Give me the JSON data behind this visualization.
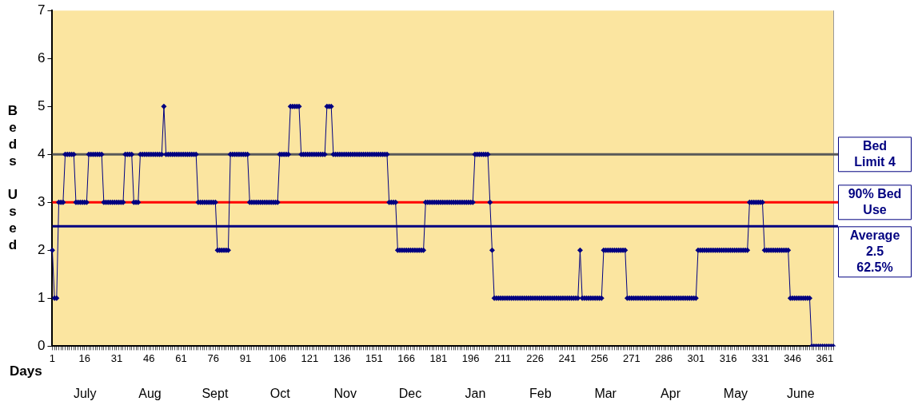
{
  "chart_data": {
    "type": "line",
    "xlabel": "Days",
    "ylabel": "Beds Used",
    "marker": "diamond",
    "grid": false,
    "ylim": [
      0,
      7
    ],
    "yticks": [
      0,
      1,
      2,
      3,
      4,
      5,
      6,
      7
    ],
    "categories": [
      "1",
      null,
      null,
      null,
      null,
      null,
      null,
      null,
      null,
      null,
      null,
      null,
      null,
      null,
      null,
      "16",
      null,
      null,
      null,
      null,
      null,
      null,
      null,
      null,
      null,
      null,
      null,
      null,
      null,
      null,
      "31",
      null,
      null,
      null,
      null,
      null,
      null,
      null,
      null,
      null,
      null,
      null,
      null,
      null,
      null,
      "46",
      null,
      null,
      null,
      null,
      null,
      null,
      null,
      null,
      null,
      null,
      null,
      null,
      null,
      null,
      "61",
      null,
      null,
      null,
      null,
      null,
      null,
      null,
      null,
      null,
      null,
      null,
      null,
      null,
      null,
      "76",
      null,
      null,
      null,
      null,
      null,
      null,
      null,
      null,
      null,
      null,
      null,
      null,
      null,
      null,
      "91",
      null,
      null,
      null,
      null,
      null,
      null,
      null,
      null,
      null,
      null,
      null,
      null,
      null,
      null,
      "106",
      null,
      null,
      null,
      null,
      null,
      null,
      null,
      null,
      null,
      null,
      null,
      null,
      null,
      null,
      "121",
      null,
      null,
      null,
      null,
      null,
      null,
      null,
      null,
      null,
      null,
      null,
      null,
      null,
      null,
      "136",
      null,
      null,
      null,
      null,
      null,
      null,
      null,
      null,
      null,
      null,
      null,
      null,
      null,
      null,
      "151",
      null,
      null,
      null,
      null,
      null,
      null,
      null,
      null,
      null,
      null,
      null,
      null,
      null,
      null,
      "166",
      null,
      null,
      null,
      null,
      null,
      null,
      null,
      null,
      null,
      null,
      null,
      null,
      null,
      null,
      "181",
      null,
      null,
      null,
      null,
      null,
      null,
      null,
      null,
      null,
      null,
      null,
      null,
      null,
      null,
      "196",
      null,
      null,
      null,
      null,
      null,
      null,
      null,
      null,
      null,
      null,
      null,
      null,
      null,
      null,
      "211",
      null,
      null,
      null,
      null,
      null,
      null,
      null,
      null,
      null,
      null,
      null,
      null,
      null,
      null,
      "226",
      null,
      null,
      null,
      null,
      null,
      null,
      null,
      null,
      null,
      null,
      null,
      null,
      null,
      null,
      "241",
      null,
      null,
      null,
      null,
      null,
      null,
      null,
      null,
      null,
      null,
      null,
      null,
      null,
      null,
      "256",
      null,
      null,
      null,
      null,
      null,
      null,
      null,
      null,
      null,
      null,
      null,
      null,
      null,
      null,
      "271",
      null,
      null,
      null,
      null,
      null,
      null,
      null,
      null,
      null,
      null,
      null,
      null,
      null,
      null,
      "286",
      null,
      null,
      null,
      null,
      null,
      null,
      null,
      null,
      null,
      null,
      null,
      null,
      null,
      null,
      "301",
      null,
      null,
      null,
      null,
      null,
      null,
      null,
      null,
      null,
      null,
      null,
      null,
      null,
      null,
      "316",
      null,
      null,
      null,
      null,
      null,
      null,
      null,
      null,
      null,
      null,
      null,
      null,
      null,
      null,
      "331",
      null,
      null,
      null,
      null,
      null,
      null,
      null,
      null,
      null,
      null,
      null,
      null,
      null,
      null,
      "346",
      null,
      null,
      null,
      null,
      null,
      null,
      null,
      null,
      null,
      null,
      null,
      null,
      null,
      null,
      "361",
      null,
      null,
      null,
      null
    ],
    "series": [
      {
        "color": "#000080",
        "values": [
          2,
          1,
          1,
          3,
          3,
          3,
          4,
          4,
          4,
          4,
          4,
          3,
          3,
          3,
          3,
          3,
          3,
          4,
          4,
          4,
          4,
          4,
          4,
          4,
          3,
          3,
          3,
          3,
          3,
          3,
          3,
          3,
          3,
          3,
          4,
          4,
          4,
          4,
          3,
          3,
          3,
          4,
          4,
          4,
          4,
          4,
          4,
          4,
          4,
          4,
          4,
          4,
          5,
          4,
          4,
          4,
          4,
          4,
          4,
          4,
          4,
          4,
          4,
          4,
          4,
          4,
          4,
          4,
          3,
          3,
          3,
          3,
          3,
          3,
          3,
          3,
          3,
          2,
          2,
          2,
          2,
          2,
          2,
          4,
          4,
          4,
          4,
          4,
          4,
          4,
          4,
          4,
          3,
          3,
          3,
          3,
          3,
          3,
          3,
          3,
          3,
          3,
          3,
          3,
          3,
          3,
          4,
          4,
          4,
          4,
          4,
          5,
          5,
          5,
          5,
          5,
          4,
          4,
          4,
          4,
          4,
          4,
          4,
          4,
          4,
          4,
          4,
          4,
          5,
          5,
          5,
          4,
          4,
          4,
          4,
          4,
          4,
          4,
          4,
          4,
          4,
          4,
          4,
          4,
          4,
          4,
          4,
          4,
          4,
          4,
          4,
          4,
          4,
          4,
          4,
          4,
          4,
          3,
          3,
          3,
          3,
          2,
          2,
          2,
          2,
          2,
          2,
          2,
          2,
          2,
          2,
          2,
          2,
          2,
          3,
          3,
          3,
          3,
          3,
          3,
          3,
          3,
          3,
          3,
          3,
          3,
          3,
          3,
          3,
          3,
          3,
          3,
          3,
          3,
          3,
          3,
          3,
          4,
          4,
          4,
          4,
          4,
          4,
          4,
          3,
          2,
          1,
          1,
          1,
          1,
          1,
          1,
          1,
          1,
          1,
          1,
          1,
          1,
          1,
          1,
          1,
          1,
          1,
          1,
          1,
          1,
          1,
          1,
          1,
          1,
          1,
          1,
          1,
          1,
          1,
          1,
          1,
          1,
          1,
          1,
          1,
          1,
          1,
          1,
          1,
          1,
          2,
          1,
          1,
          1,
          1,
          1,
          1,
          1,
          1,
          1,
          1,
          2,
          2,
          2,
          2,
          2,
          2,
          2,
          2,
          2,
          2,
          2,
          1,
          1,
          1,
          1,
          1,
          1,
          1,
          1,
          1,
          1,
          1,
          1,
          1,
          1,
          1,
          1,
          1,
          1,
          1,
          1,
          1,
          1,
          1,
          1,
          1,
          1,
          1,
          1,
          1,
          1,
          1,
          1,
          1,
          2,
          2,
          2,
          2,
          2,
          2,
          2,
          2,
          2,
          2,
          2,
          2,
          2,
          2,
          2,
          2,
          2,
          2,
          2,
          2,
          2,
          2,
          2,
          2,
          3,
          3,
          3,
          3,
          3,
          3,
          3,
          2,
          2,
          2,
          2,
          2,
          2,
          2,
          2,
          2,
          2,
          2,
          2,
          1,
          1,
          1,
          1,
          1,
          1,
          1,
          1,
          1,
          1,
          0,
          0,
          0,
          0,
          0,
          0,
          0,
          0,
          0,
          0,
          0
        ]
      }
    ],
    "ref_lines": [
      {
        "axis": "y",
        "value": 4,
        "label": "Bed Limit 4",
        "color": "#595959"
      },
      {
        "axis": "y",
        "value": 3,
        "label": "90% Bed Use",
        "color": "#ff0000"
      },
      {
        "axis": "y",
        "value": 2.5,
        "label": "Average 2.5 62.5%",
        "color": "#000080"
      }
    ],
    "annotations": [
      "July",
      "Aug",
      "Sept",
      "Oct",
      "Nov",
      "Dec",
      "Jan",
      "Feb",
      "Mar",
      "Apr",
      "May",
      "June"
    ]
  }
}
